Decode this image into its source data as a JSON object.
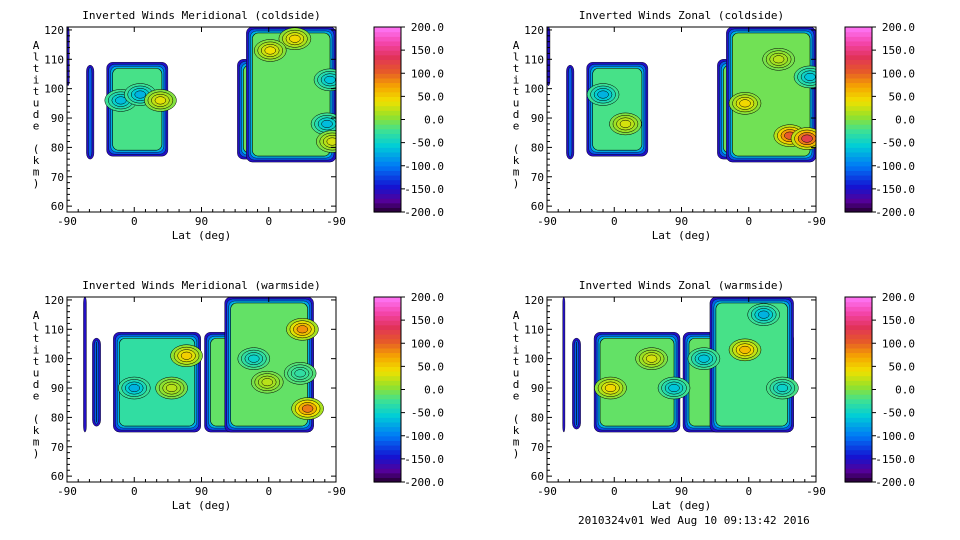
{
  "footer": {
    "stamp": "2010324v01 Wed Aug 10 09:13:42 2016"
  },
  "chart_data": [
    {
      "type": "heatmap",
      "title": "Inverted Winds Meridional (coldside)",
      "xlabel": "Lat (deg)",
      "ylabel": "Altitude (km)",
      "xticks": [
        "-90",
        "0",
        "90",
        "0",
        "-90"
      ],
      "yticks": [
        "60",
        "70",
        "80",
        "90",
        "100",
        "110",
        "120"
      ],
      "ylim": [
        58,
        121
      ],
      "colorbar": {
        "min": -200,
        "max": 200,
        "ticks": [
          "200.0",
          "150.0",
          "100.0",
          "50.0",
          "0.0",
          "-50.0",
          "-100.0",
          "-150.0",
          "-200.0"
        ]
      },
      "regions": [
        {
          "x": [
            -90,
            -87
          ],
          "y": [
            101,
            121
          ],
          "value": -160
        },
        {
          "x": [
            -64,
            -54
          ],
          "y": [
            76,
            108
          ],
          "value": -60
        },
        {
          "x": [
            -37,
            45
          ],
          "y": [
            77,
            109
          ],
          "value": -20
        },
        {
          "x": [
            138,
            190
          ],
          "y": [
            76,
            110
          ],
          "value": -5
        },
        {
          "x": [
            150,
            270
          ],
          "y": [
            75,
            121
          ],
          "value": -10
        }
      ],
      "hotspots": [
        {
          "x": -18,
          "y": 96,
          "value": -65
        },
        {
          "x": 8,
          "y": 98,
          "value": -70
        },
        {
          "x": 35,
          "y": 96,
          "value": 35
        },
        {
          "x": 215,
          "y": 117,
          "value": 45
        },
        {
          "x": 182,
          "y": 113,
          "value": 40
        },
        {
          "x": 262,
          "y": 103,
          "value": -60
        },
        {
          "x": 258,
          "y": 88,
          "value": -65
        },
        {
          "x": 265,
          "y": 82,
          "value": 30
        }
      ]
    },
    {
      "type": "heatmap",
      "title": "Inverted Winds Zonal (coldside)",
      "xlabel": "Lat (deg)",
      "ylabel": "Altitude (km)",
      "xticks": [
        "-90",
        "0",
        "90",
        "0",
        "-90"
      ],
      "yticks": [
        "60",
        "70",
        "80",
        "90",
        "100",
        "110",
        "120"
      ],
      "ylim": [
        58,
        121
      ],
      "colorbar": {
        "min": -200,
        "max": 200,
        "ticks": [
          "200.0",
          "150.0",
          "100.0",
          "50.0",
          "0.0",
          "-50.0",
          "-100.0",
          "-150.0",
          "-200.0"
        ]
      },
      "regions": [
        {
          "x": [
            -90,
            -86
          ],
          "y": [
            101,
            121
          ],
          "value": -160
        },
        {
          "x": [
            -64,
            -54
          ],
          "y": [
            76,
            108
          ],
          "value": -60
        },
        {
          "x": [
            -37,
            45
          ],
          "y": [
            77,
            109
          ],
          "value": -20
        },
        {
          "x": [
            138,
            190
          ],
          "y": [
            76,
            110
          ],
          "value": -5
        },
        {
          "x": [
            150,
            270
          ],
          "y": [
            75,
            121
          ],
          "value": -5
        }
      ],
      "hotspots": [
        {
          "x": -15,
          "y": 98,
          "value": -70
        },
        {
          "x": 15,
          "y": 88,
          "value": 30
        },
        {
          "x": 175,
          "y": 95,
          "value": 45
        },
        {
          "x": 220,
          "y": 110,
          "value": 20
        },
        {
          "x": 235,
          "y": 84,
          "value": 105
        },
        {
          "x": 258,
          "y": 83,
          "value": 125
        },
        {
          "x": 262,
          "y": 104,
          "value": -60
        }
      ]
    },
    {
      "type": "heatmap",
      "title": "Inverted Winds Meridional (warmside)",
      "xlabel": "Lat (deg)",
      "ylabel": "Altitude (km)",
      "xticks": [
        "-90",
        "0",
        "90",
        "0",
        "-90"
      ],
      "yticks": [
        "60",
        "70",
        "80",
        "90",
        "100",
        "110",
        "120"
      ],
      "ylim": [
        58,
        121
      ],
      "colorbar": {
        "min": -200,
        "max": 200,
        "ticks": [
          "200.0",
          "150.0",
          "100.0",
          "50.0",
          "0.0",
          "-50.0",
          "-100.0",
          "-150.0",
          "-200.0"
        ]
      },
      "regions": [
        {
          "x": [
            -68,
            -64
          ],
          "y": [
            75,
            121
          ],
          "value": -200
        },
        {
          "x": [
            -56,
            -45
          ],
          "y": [
            77,
            107
          ],
          "value": -60
        },
        {
          "x": [
            -28,
            89
          ],
          "y": [
            75,
            109
          ],
          "value": -30
        },
        {
          "x": [
            94,
            240
          ],
          "y": [
            75,
            109
          ],
          "value": -10
        },
        {
          "x": [
            121,
            240
          ],
          "y": [
            75,
            121
          ],
          "value": -10
        }
      ],
      "hotspots": [
        {
          "x": 0,
          "y": 90,
          "value": -70
        },
        {
          "x": 70,
          "y": 101,
          "value": 50
        },
        {
          "x": 50,
          "y": 90,
          "value": 20
        },
        {
          "x": 160,
          "y": 100,
          "value": -50
        },
        {
          "x": 178,
          "y": 92,
          "value": 20
        },
        {
          "x": 225,
          "y": 110,
          "value": 80
        },
        {
          "x": 232,
          "y": 83,
          "value": 90
        },
        {
          "x": 222,
          "y": 95,
          "value": -30
        }
      ]
    },
    {
      "type": "heatmap",
      "title": "Inverted Winds Zonal (warmside)",
      "xlabel": "Lat (deg)",
      "ylabel": "Altitude (km)",
      "xticks": [
        "-90",
        "0",
        "90",
        "0",
        "-90"
      ],
      "yticks": [
        "60",
        "70",
        "80",
        "90",
        "100",
        "110",
        "120"
      ],
      "ylim": [
        58,
        121
      ],
      "colorbar": {
        "min": -200,
        "max": 200,
        "ticks": [
          "200.0",
          "150.0",
          "100.0",
          "50.0",
          "0.0",
          "-50.0",
          "-100.0",
          "-150.0",
          "-200.0"
        ]
      },
      "regions": [
        {
          "x": [
            -69,
            -66
          ],
          "y": [
            75,
            121
          ],
          "value": -180
        },
        {
          "x": [
            -56,
            -45
          ],
          "y": [
            76,
            107
          ],
          "value": -70
        },
        {
          "x": [
            -27,
            88
          ],
          "y": [
            75,
            109
          ],
          "value": -10
        },
        {
          "x": [
            92,
            240
          ],
          "y": [
            75,
            109
          ],
          "value": -10
        },
        {
          "x": [
            128,
            240
          ],
          "y": [
            75,
            121
          ],
          "value": -20
        }
      ],
      "hotspots": [
        {
          "x": -5,
          "y": 90,
          "value": 45
        },
        {
          "x": 50,
          "y": 100,
          "value": 30
        },
        {
          "x": 80,
          "y": 90,
          "value": -60
        },
        {
          "x": 120,
          "y": 100,
          "value": -60
        },
        {
          "x": 175,
          "y": 103,
          "value": 60
        },
        {
          "x": 200,
          "y": 115,
          "value": -70
        },
        {
          "x": 225,
          "y": 90,
          "value": -50
        }
      ]
    }
  ]
}
